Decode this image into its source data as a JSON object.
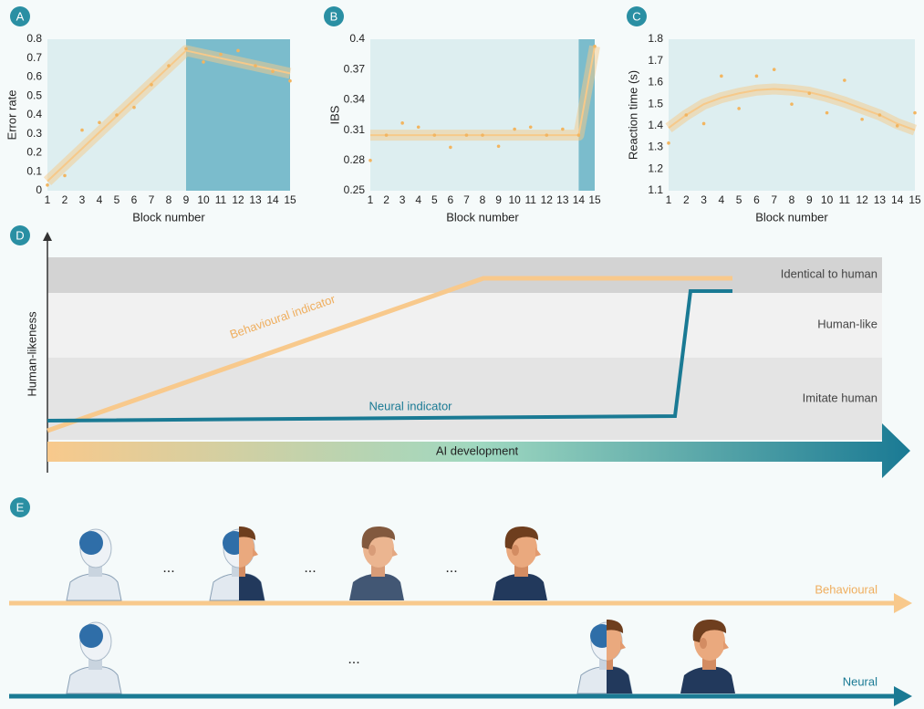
{
  "chart_data": [
    {
      "type": "scatter",
      "panel_label": "A",
      "xlabel": "Block number",
      "ylabel": "Error rate",
      "x": [
        1,
        2,
        3,
        4,
        5,
        6,
        7,
        8,
        9,
        10,
        11,
        12,
        13,
        14,
        15
      ],
      "values": [
        0.03,
        0.08,
        0.32,
        0.36,
        0.4,
        0.44,
        0.56,
        0.66,
        0.75,
        0.68,
        0.72,
        0.74,
        0.66,
        0.63,
        0.58
      ],
      "fit": {
        "x": [
          1,
          9,
          15
        ],
        "values": [
          0.05,
          0.74,
          0.62
        ]
      },
      "highlight": [
        9,
        15
      ],
      "xlim": [
        1,
        15
      ],
      "ylim": [
        0,
        0.8
      ],
      "xticks": [
        1,
        2,
        3,
        4,
        5,
        6,
        7,
        8,
        9,
        10,
        11,
        12,
        13,
        14,
        15
      ],
      "yticks": [
        0,
        0.1,
        0.2,
        0.3,
        0.4,
        0.5,
        0.6,
        0.7,
        0.8
      ],
      "color": "#f6c98a"
    },
    {
      "type": "scatter",
      "panel_label": "B",
      "xlabel": "Block number",
      "ylabel": "IBS",
      "x": [
        1,
        2,
        3,
        4,
        5,
        6,
        7,
        8,
        9,
        10,
        11,
        12,
        13,
        14,
        15
      ],
      "values": [
        0.28,
        0.305,
        0.317,
        0.313,
        0.305,
        0.293,
        0.305,
        0.305,
        0.294,
        0.311,
        0.313,
        0.305,
        0.311,
        0.305,
        0.393
      ],
      "fit": {
        "x": [
          1,
          14,
          15
        ],
        "values": [
          0.305,
          0.305,
          0.393
        ]
      },
      "highlight": [
        14,
        15
      ],
      "xlim": [
        1,
        15
      ],
      "ylim": [
        0.25,
        0.4
      ],
      "xticks": [
        1,
        2,
        3,
        4,
        5,
        6,
        7,
        8,
        9,
        10,
        11,
        12,
        13,
        14,
        15
      ],
      "yticks": [
        0.25,
        0.28,
        0.31,
        0.34,
        0.37,
        0.4
      ],
      "color": "#f6c98a"
    },
    {
      "type": "scatter",
      "panel_label": "C",
      "xlabel": "Block number",
      "ylabel": "Reaction time (s)",
      "x": [
        1,
        2,
        3,
        4,
        5,
        6,
        7,
        8,
        9,
        10,
        11,
        12,
        13,
        14,
        15
      ],
      "values": [
        1.32,
        1.45,
        1.41,
        1.63,
        1.48,
        1.63,
        1.66,
        1.5,
        1.55,
        1.46,
        1.61,
        1.43,
        1.45,
        1.4,
        1.46
      ],
      "fit": {
        "x": [
          1,
          2,
          3,
          4,
          5,
          6,
          7,
          8,
          9,
          10,
          11,
          12,
          13,
          14,
          15
        ],
        "values": [
          1.39,
          1.45,
          1.5,
          1.53,
          1.55,
          1.565,
          1.57,
          1.565,
          1.555,
          1.535,
          1.51,
          1.48,
          1.45,
          1.41,
          1.38
        ]
      },
      "xlim": [
        1,
        15
      ],
      "ylim": [
        1.1,
        1.8
      ],
      "xticks": [
        1,
        2,
        3,
        4,
        5,
        6,
        7,
        8,
        9,
        10,
        11,
        12,
        13,
        14,
        15
      ],
      "yticks": [
        1.1,
        1.2,
        1.3,
        1.4,
        1.5,
        1.6,
        1.7,
        1.8
      ],
      "color": "#f6c98a"
    }
  ],
  "panel_d": {
    "label": "D",
    "y_label": "Human-likeness",
    "levels": [
      "Identical to human",
      "Human-like",
      "Imitate human"
    ],
    "behavioural_label": "Behavioural indicator",
    "neural_label": "Neural indicator",
    "x_label": "AI development"
  },
  "panel_e": {
    "label": "E",
    "tracks": [
      "Behavioural",
      "Neural"
    ],
    "ellipsis": "..."
  }
}
